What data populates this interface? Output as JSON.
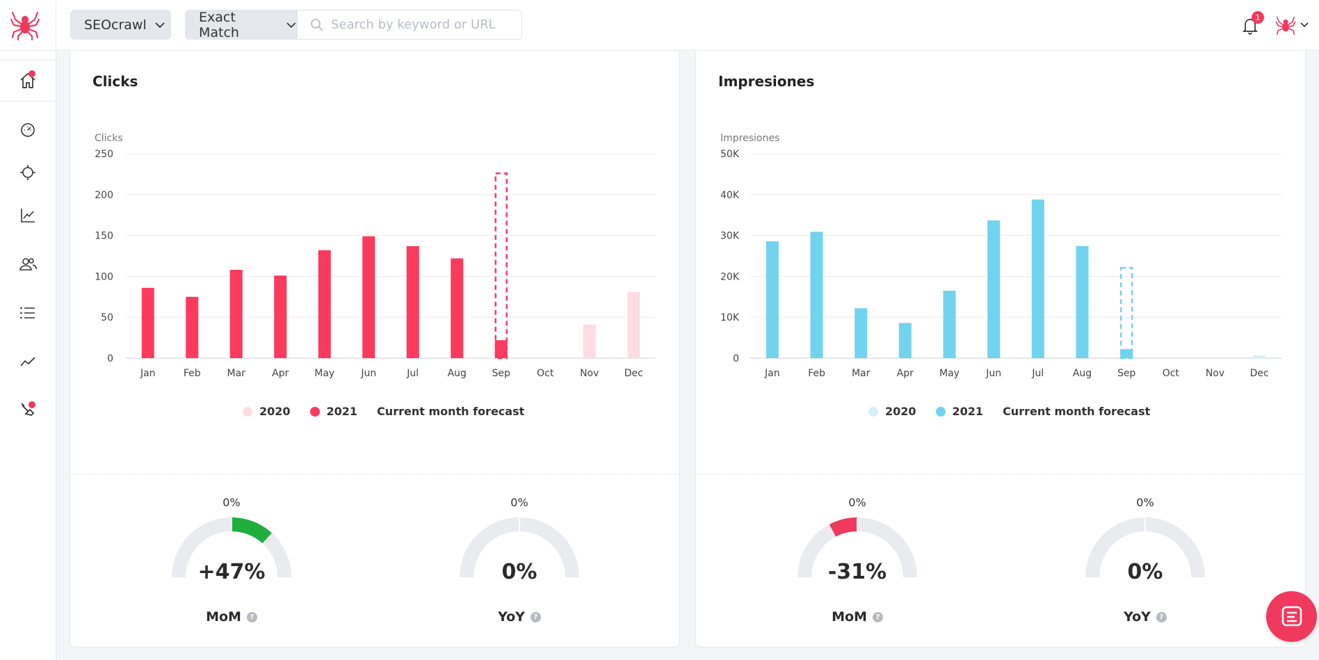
{
  "colors": {
    "accent": "#ef3a5d",
    "clicks_2021": "#fc3a5d",
    "clicks_2020": "#fddde3",
    "impr_2021": "#72d3ef",
    "impr_2020": "#d4f0fa",
    "gauge_track": "#e9ebee",
    "gauge_positive": "#1fae3c",
    "gauge_negative": "#ef3a5d"
  },
  "topbar": {
    "site_selector": "SEOcrawl",
    "match_selector": "Exact Match",
    "search_placeholder": "Search by keyword or URL",
    "notification_count": "1"
  },
  "sidebar": {
    "items": [
      {
        "icon": "home-icon",
        "active": true,
        "dot": true
      },
      {
        "icon": "dashboard-gauge-icon"
      },
      {
        "icon": "crosshair-icon"
      },
      {
        "icon": "trend-chart-icon"
      },
      {
        "icon": "users-icon"
      },
      {
        "icon": "list-icon"
      },
      {
        "icon": "line-chart-icon"
      },
      {
        "icon": "tools-icon",
        "dot": true
      }
    ]
  },
  "clicks_card": {
    "title": "Clicks",
    "legend": {
      "a": "2020",
      "b": "2021",
      "c": "Current month forecast"
    },
    "gauges": [
      {
        "top": "0%",
        "value": "+47%",
        "label": "MoM",
        "pct": 0.47,
        "dir": "positive"
      },
      {
        "top": "0%",
        "value": "0%",
        "label": "YoY",
        "pct": 0,
        "dir": "none"
      }
    ]
  },
  "impressions_card": {
    "title": "Impresiones",
    "legend": {
      "a": "2020",
      "b": "2021",
      "c": "Current month forecast"
    },
    "gauges": [
      {
        "top": "0%",
        "value": "-31%",
        "label": "MoM",
        "pct": 0.31,
        "dir": "negative"
      },
      {
        "top": "0%",
        "value": "0%",
        "label": "YoY",
        "pct": 0,
        "dir": "none"
      }
    ]
  },
  "chart_data": [
    {
      "type": "bar",
      "title": "Clicks",
      "ylabel": "Clicks",
      "categories": [
        "Jan",
        "Feb",
        "Mar",
        "Apr",
        "May",
        "Jun",
        "Jul",
        "Aug",
        "Sep",
        "Oct",
        "Nov",
        "Dec"
      ],
      "ylim": [
        0,
        250
      ],
      "yticks": [
        0,
        50,
        100,
        150,
        200,
        250
      ],
      "ytick_labels": [
        "0",
        "50",
        "100",
        "150",
        "200",
        "250"
      ],
      "series": [
        {
          "name": "2020",
          "values": [
            0,
            0,
            0,
            0,
            0,
            0,
            0,
            0,
            0,
            0,
            41,
            81
          ]
        },
        {
          "name": "2021",
          "values": [
            86,
            75,
            108,
            101,
            132,
            149,
            137,
            122,
            22,
            0,
            0,
            0
          ]
        },
        {
          "name": "Current month forecast",
          "values": [
            0,
            0,
            0,
            0,
            0,
            0,
            0,
            0,
            226,
            0,
            0,
            0
          ]
        }
      ],
      "grid": true,
      "legend_position": "bottom"
    },
    {
      "type": "bar",
      "title": "Impresiones",
      "ylabel": "Impresiones",
      "categories": [
        "Jan",
        "Feb",
        "Mar",
        "Apr",
        "May",
        "Jun",
        "Jul",
        "Aug",
        "Sep",
        "Oct",
        "Nov",
        "Dec"
      ],
      "ylim": [
        0,
        50000
      ],
      "yticks": [
        0,
        10000,
        20000,
        30000,
        40000,
        50000
      ],
      "ytick_labels": [
        "0",
        "10K",
        "20K",
        "30K",
        "40K",
        "50K"
      ],
      "series": [
        {
          "name": "2020",
          "values": [
            0,
            0,
            0,
            0,
            0,
            0,
            0,
            0,
            0,
            0,
            0,
            700
          ]
        },
        {
          "name": "2021",
          "values": [
            28600,
            30900,
            12200,
            8600,
            16500,
            33700,
            38800,
            27400,
            2200,
            0,
            0,
            0
          ]
        },
        {
          "name": "Current month forecast",
          "values": [
            0,
            0,
            0,
            0,
            0,
            0,
            0,
            0,
            22100,
            0,
            0,
            0
          ]
        }
      ],
      "grid": true,
      "legend_position": "bottom"
    }
  ]
}
